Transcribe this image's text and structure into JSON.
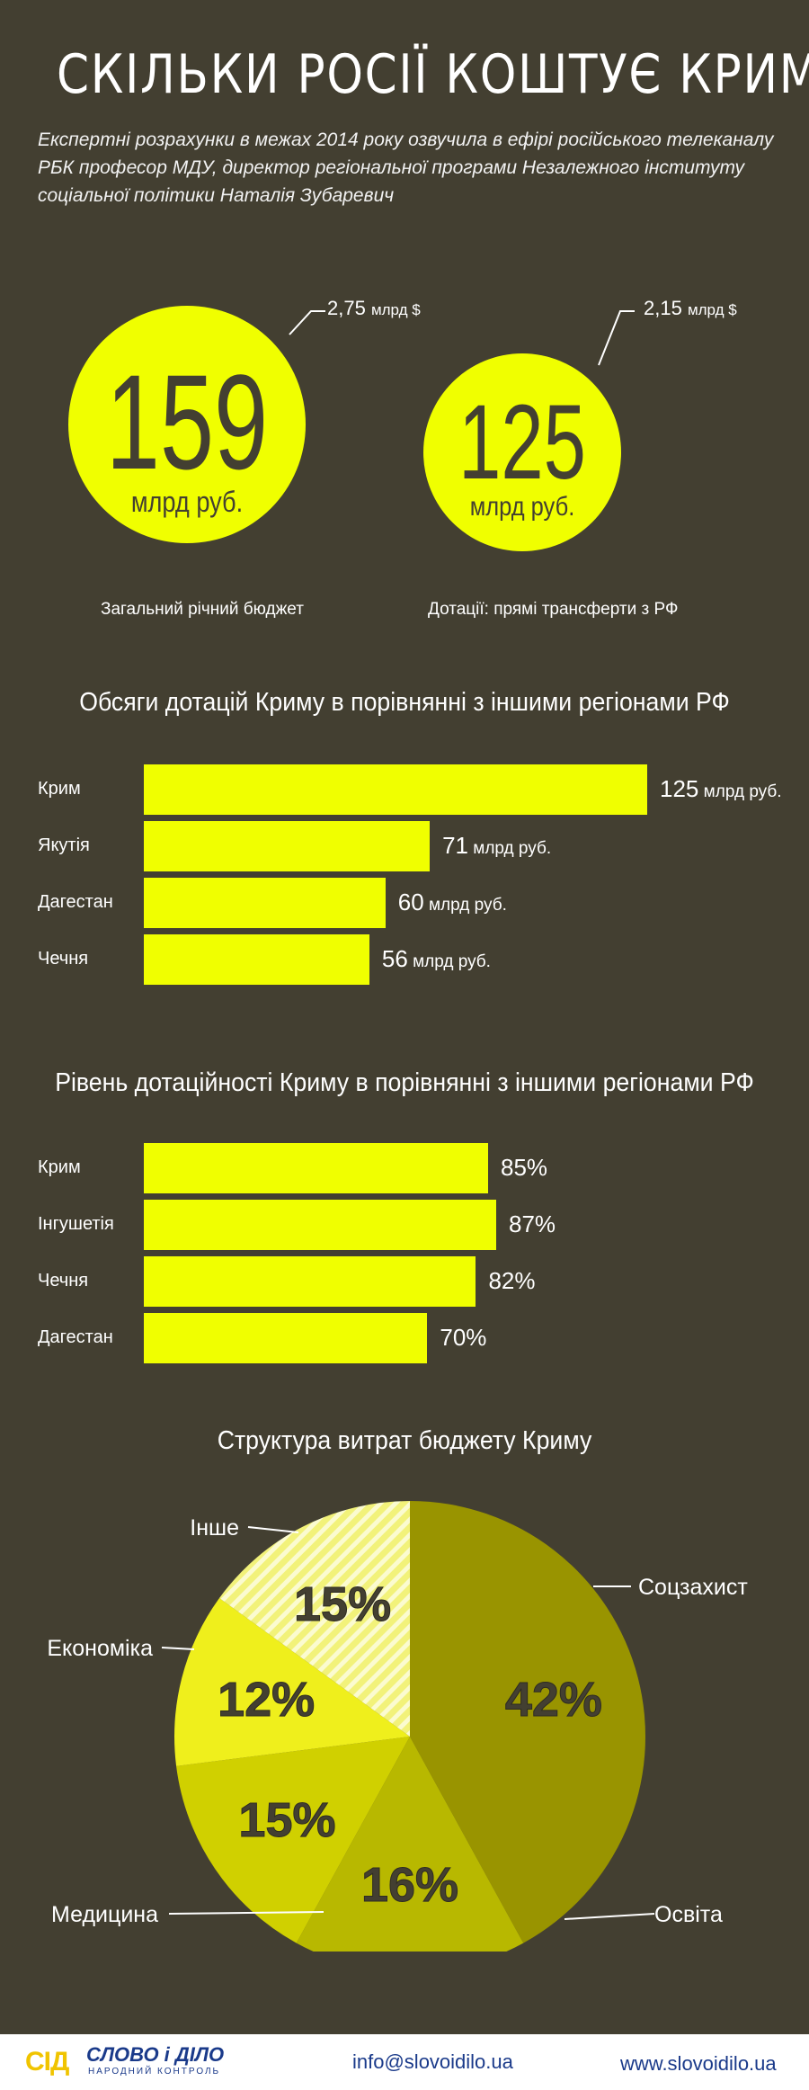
{
  "title": "СКІЛЬКИ РОСІЇ КОШТУЄ КРИМ",
  "subtitle": "Експертні розрахунки в межах 2014 року озвучила в ефірі російського телеканалу РБК професор МДУ, директор регіональної програми Незалежного інституту соціальної політики Наталія Зубаревич",
  "circles": [
    {
      "value": "159",
      "unit": "млрд руб.",
      "usd": "2,75",
      "usd_unit": "млрд $",
      "caption": "Загальний річний бюджет"
    },
    {
      "value": "125",
      "unit": "млрд руб.",
      "usd": "2,15",
      "usd_unit": "млрд $",
      "caption": "Дотації: прямі трансферти з РФ"
    }
  ],
  "colors": {
    "background": "#433f31",
    "accent": "#f0ff00",
    "text": "#ffffff",
    "footer_blue": "#1a3a8a"
  },
  "chart_data": [
    {
      "type": "bar",
      "title": "Обсяги дотацій Криму в порівнянні з іншими регіонами РФ",
      "categories": [
        "Крим",
        "Якутія",
        "Дагестан",
        "Чечня"
      ],
      "values": [
        125,
        71,
        60,
        56
      ],
      "value_labels": [
        "125",
        "71",
        "60",
        "56"
      ],
      "unit": "млрд руб.",
      "orientation": "horizontal"
    },
    {
      "type": "bar",
      "title": "Рівень дотаційності Криму в порівнянні з іншими регіонами РФ",
      "categories": [
        "Крим",
        "Інгушетія",
        "Чечня",
        "Дагестан"
      ],
      "values": [
        85,
        87,
        82,
        70
      ],
      "value_labels": [
        "85%",
        "87%",
        "82%",
        "70%"
      ],
      "orientation": "horizontal"
    },
    {
      "type": "pie",
      "title": "Структура витрат бюджету Криму",
      "categories": [
        "Соцзахист",
        "Освіта",
        "Медицина",
        "Економіка",
        "Інше"
      ],
      "values": [
        42,
        16,
        15,
        12,
        15
      ],
      "value_labels": [
        "42%",
        "16%",
        "15%",
        "12%",
        "15%"
      ],
      "colors": [
        "#999400",
        "#b8b800",
        "#d0d000",
        "#efef1c",
        "#f2f27a"
      ]
    }
  ],
  "footer": {
    "logo_mark": "СІД",
    "logo_name": "СЛОВО і ДІЛО",
    "logo_tagline": "НАРОДНИЙ КОНТРОЛЬ",
    "email": "info@slovoidilo.ua",
    "website": "www.slovoidilo.ua"
  }
}
